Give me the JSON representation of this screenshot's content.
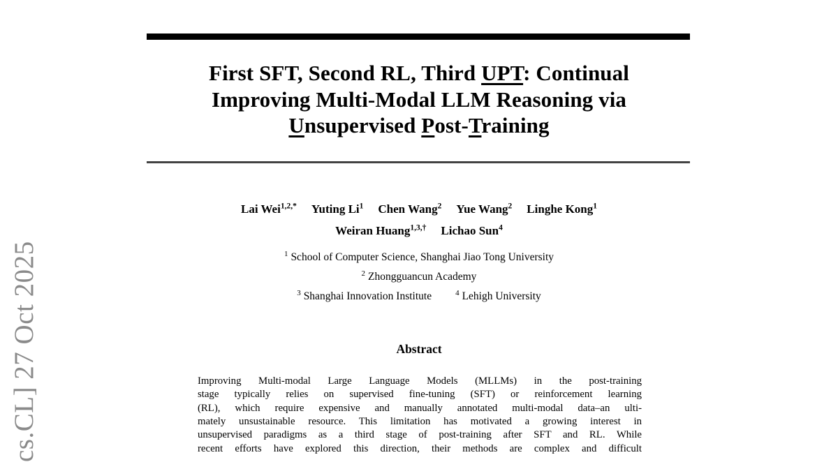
{
  "stamp": {
    "text": "cs.CL] 27 Oct 2025",
    "color": "#8a8a8a"
  },
  "title": {
    "line1": [
      {
        "text": "First SFT, Second RL, Third ",
        "u": false
      },
      {
        "text": "UPT",
        "u": true
      },
      {
        "text": ": Continual",
        "u": false
      }
    ],
    "line2": [
      {
        "text": "Improving Multi-Modal LLM Reasoning via",
        "u": false
      }
    ],
    "line3": [
      {
        "text": "U",
        "u": true
      },
      {
        "text": "nsupervised ",
        "u": false
      },
      {
        "text": "P",
        "u": true
      },
      {
        "text": "ost-",
        "u": false
      },
      {
        "text": "T",
        "u": true
      },
      {
        "text": "raining",
        "u": false
      }
    ]
  },
  "authors": {
    "row1": [
      {
        "name": "Lai Wei",
        "sup": "1,2,*"
      },
      {
        "name": "Yuting Li",
        "sup": "1"
      },
      {
        "name": "Chen Wang",
        "sup": "2"
      },
      {
        "name": "Yue Wang",
        "sup": "2"
      },
      {
        "name": "Linghe Kong",
        "sup": "1"
      }
    ],
    "row2": [
      {
        "name": "Weiran Huang",
        "sup": "1,3,†"
      },
      {
        "name": "Lichao Sun",
        "sup": "4"
      }
    ]
  },
  "affiliations": {
    "rows": [
      [
        {
          "sup": "1",
          "text": "School of Computer Science, Shanghai Jiao Tong University"
        }
      ],
      [
        {
          "sup": "2",
          "text": "Zhongguancun Academy"
        }
      ],
      [
        {
          "sup": "3",
          "text": "Shanghai Innovation Institute"
        },
        {
          "sup": "4",
          "text": "Lehigh University"
        }
      ]
    ]
  },
  "abstract": {
    "heading": "Abstract",
    "lines": [
      "Improving Multi-modal Large Language Models (MLLMs) in the post-training",
      "stage typically relies on supervised fine-tuning (SFT) or reinforcement learning",
      "(RL), which require expensive and manually annotated multi-modal data–an ulti-",
      "mately unsustainable resource. This limitation has motivated a growing interest in",
      "unsupervised paradigms as a third stage of post-training after SFT and RL. While",
      "recent efforts have explored this direction, their methods are complex and difficult"
    ]
  },
  "decor": {
    "bar_color": "#000000",
    "rule_color": "#424242"
  }
}
